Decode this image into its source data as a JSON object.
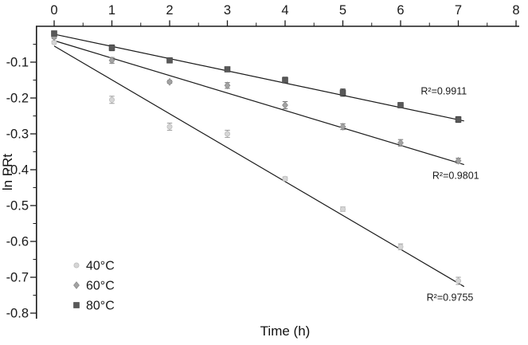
{
  "chart_data": {
    "type": "scatter",
    "title": "",
    "xlabel": "Time (h)",
    "ylabel": "ln PRt",
    "xlim": [
      0,
      8
    ],
    "ylim": [
      -0.8,
      0
    ],
    "x_ticks": [
      0,
      1,
      2,
      3,
      4,
      5,
      6,
      7,
      8
    ],
    "y_ticks": [
      -0.1,
      -0.2,
      -0.3,
      -0.4,
      -0.5,
      -0.6,
      -0.7,
      -0.8
    ],
    "grid": false,
    "legend_position": "lower-left",
    "x": [
      0,
      1,
      2,
      3,
      4,
      5,
      6,
      7
    ],
    "series": [
      {
        "name": "40°C",
        "marker": "circle",
        "color": "#d6d6d6",
        "edge_color": "#bdbdbd",
        "error_color": "#a3a3a3",
        "values": [
          -0.045,
          -0.205,
          -0.28,
          -0.3,
          -0.425,
          -0.51,
          -0.615,
          -0.71
        ],
        "errors": [
          0.004,
          0.01,
          0.01,
          0.01,
          0.005,
          0.006,
          0.008,
          0.01
        ],
        "fit": {
          "intercept": -0.055,
          "slope": -0.0945,
          "x_end": 7.1,
          "r2": 0.9755
        }
      },
      {
        "name": "60°C",
        "marker": "diamond",
        "color": "#a3a3a3",
        "edge_color": "#8c8c8c",
        "error_color": "#7a7a7a",
        "values": [
          -0.03,
          -0.095,
          -0.155,
          -0.165,
          -0.22,
          -0.28,
          -0.325,
          -0.375
        ],
        "errors": [
          0.004,
          0.008,
          0.004,
          0.008,
          0.01,
          0.008,
          0.009,
          0.007
        ],
        "fit": {
          "intercept": -0.04,
          "slope": -0.0487,
          "x_end": 7.1,
          "r2": 0.9801
        }
      },
      {
        "name": "80°C",
        "marker": "square",
        "color": "#595959",
        "edge_color": "#474747",
        "error_color": "#383838",
        "values": [
          -0.02,
          -0.06,
          -0.095,
          -0.12,
          -0.15,
          -0.185,
          -0.22,
          -0.26
        ],
        "errors": [
          0.004,
          0.008,
          0.007,
          0.006,
          0.008,
          0.01,
          0.007,
          0.008
        ],
        "fit": {
          "intercept": -0.022,
          "slope": -0.0341,
          "x_end": 7.1,
          "r2": 0.9911
        }
      }
    ],
    "annotations": [
      {
        "text": "R²=0.9911",
        "x": 6.35,
        "y": -0.19,
        "series": "80°C"
      },
      {
        "text": "R²=0.9801",
        "x": 6.55,
        "y": -0.425,
        "series": "60°C"
      },
      {
        "text": "R²=0.9755",
        "x": 6.45,
        "y": -0.765,
        "series": "40°C"
      }
    ],
    "ink_color": "#1a1a1a"
  }
}
